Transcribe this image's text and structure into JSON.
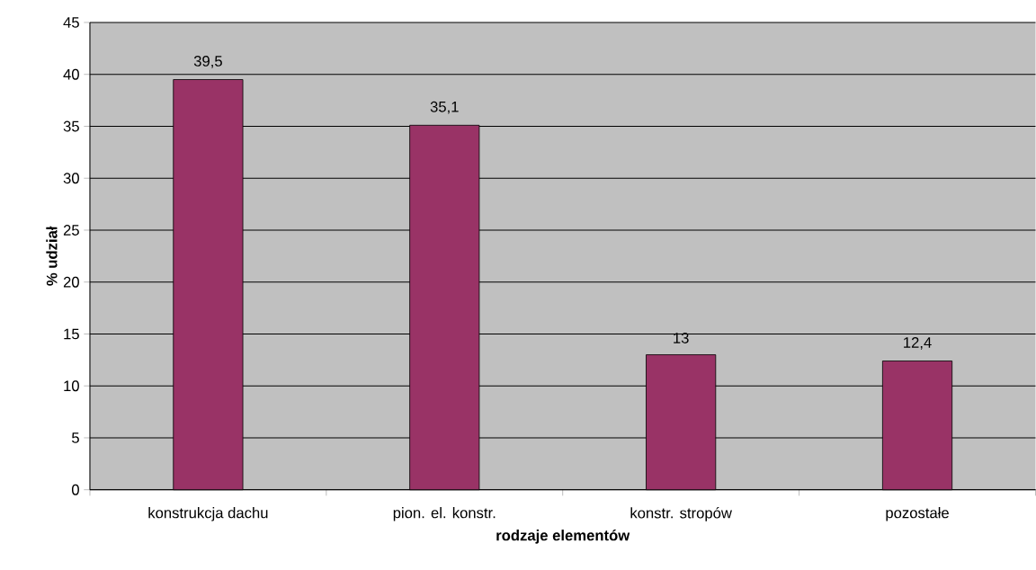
{
  "chart_data": {
    "type": "bar",
    "xlabel": "rodzaje elementów",
    "ylabel": "% udział",
    "categories": [
      "konstrukcja dachu",
      "pion. el. konstr.",
      "konstr. stropów",
      "pozostałe"
    ],
    "values": [
      39.5,
      35.1,
      13,
      12.4
    ],
    "value_labels": [
      "39,5",
      "35,1",
      "13",
      "12,4"
    ],
    "color": "#993366",
    "ylim": [
      0,
      45
    ],
    "yticks": [
      0,
      5,
      10,
      15,
      20,
      25,
      30,
      35,
      40,
      45
    ],
    "grid": "y"
  }
}
